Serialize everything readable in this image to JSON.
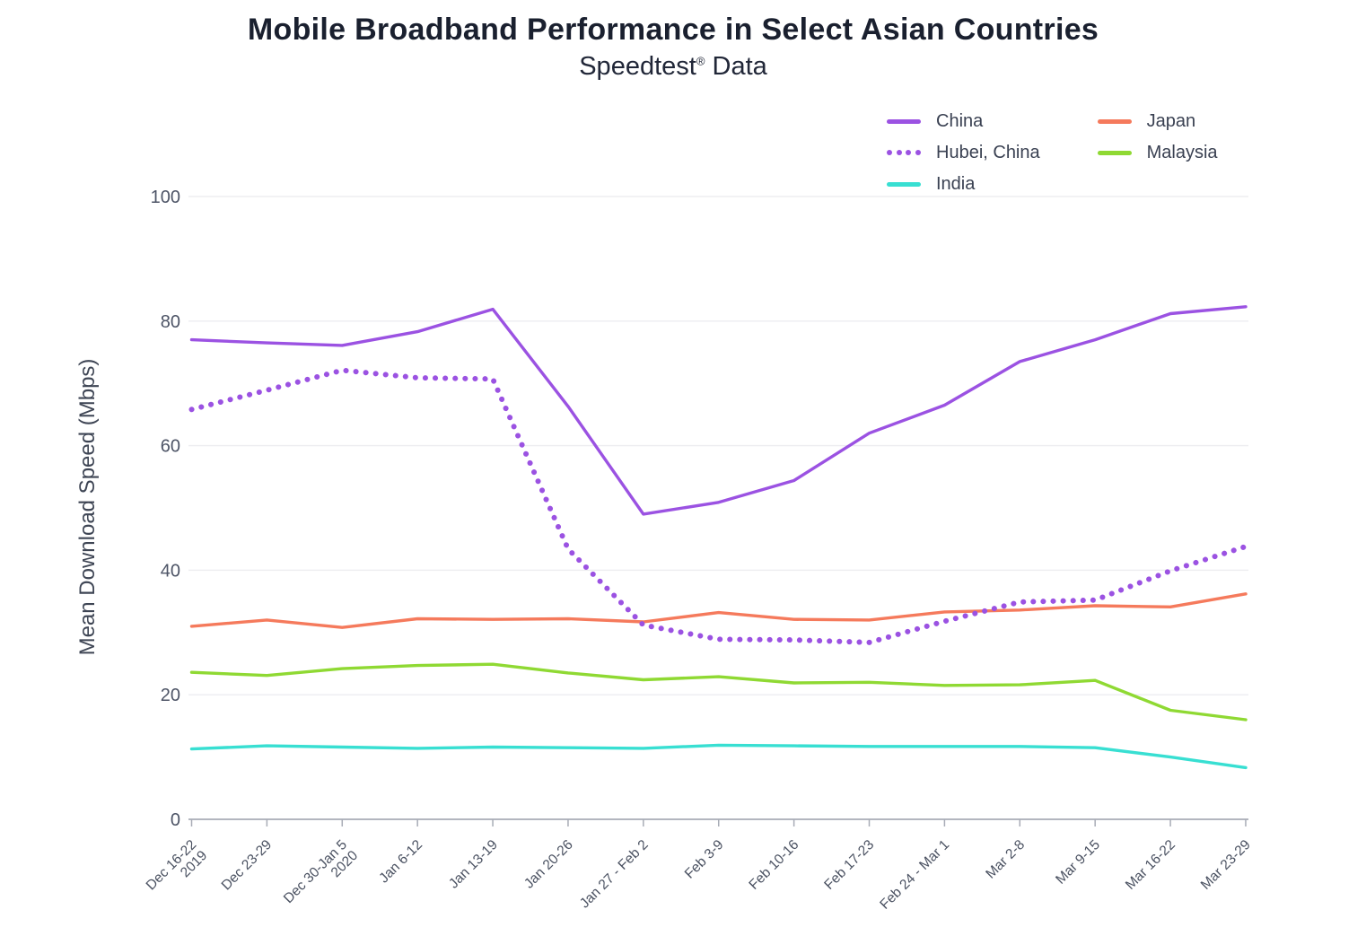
{
  "title": "Mobile Broadband Performance in Select Asian Countries",
  "subtitle_parts": {
    "brand": "Speedtest",
    "mark": "®",
    "rest": " Data"
  },
  "chart_data": {
    "type": "line",
    "title": "Mobile Broadband Performance in Select Asian Countries",
    "subtitle": "Speedtest® Data",
    "xlabel": "",
    "ylabel": "Mean Download Speed (Mbps)",
    "ylim": [
      0,
      100
    ],
    "yticks": [
      0,
      20,
      40,
      60,
      80,
      100
    ],
    "grid": true,
    "legend_position": "top-right",
    "categories": [
      [
        "Dec 16-22",
        "2019"
      ],
      "Dec 23-29",
      [
        "Dec 30-Jan 5",
        "2020"
      ],
      "Jan 6-12",
      "Jan 13-19",
      "Jan 20-26",
      "Jan 27 - Feb 2",
      "Feb 3-9",
      "Feb 10-16",
      "Feb 17-23",
      "Feb 24 - Mar 1",
      "Mar 2-8",
      "Mar 9-15",
      "Mar 16-22",
      "Mar 23-29"
    ],
    "series": [
      {
        "name": "China",
        "color": "#9b52e2",
        "style": "solid",
        "values": [
          77.0,
          76.5,
          76.1,
          78.3,
          81.9,
          66.3,
          49.0,
          50.9,
          54.4,
          62.0,
          66.5,
          73.5,
          77.0,
          81.2,
          82.3
        ]
      },
      {
        "name": "Hubei, China",
        "color": "#9b52e2",
        "style": "dotted",
        "values": [
          65.8,
          68.9,
          72.1,
          70.9,
          70.7,
          43.4,
          31.2,
          28.9,
          28.8,
          28.4,
          31.8,
          34.9,
          35.2,
          39.9,
          43.8
        ]
      },
      {
        "name": "India",
        "color": "#38dfd2",
        "style": "solid",
        "values": [
          11.3,
          11.8,
          11.6,
          11.4,
          11.6,
          11.5,
          11.4,
          11.9,
          11.8,
          11.7,
          11.7,
          11.7,
          11.5,
          10.0,
          8.3
        ]
      },
      {
        "name": "Japan",
        "color": "#f57a5c",
        "style": "solid",
        "values": [
          31.0,
          32.0,
          30.8,
          32.2,
          32.1,
          32.2,
          31.7,
          33.2,
          32.1,
          32.0,
          33.3,
          33.6,
          34.3,
          34.1,
          36.2
        ]
      },
      {
        "name": "Malaysia",
        "color": "#8fd933",
        "style": "solid",
        "values": [
          23.6,
          23.1,
          24.2,
          24.7,
          24.9,
          23.5,
          22.4,
          22.9,
          21.9,
          22.0,
          21.5,
          21.6,
          22.3,
          17.5,
          16.0
        ]
      }
    ]
  },
  "style_colors": {
    "title_text": "#1a202f",
    "axis_text": "#4d5466",
    "tick_label_text": "#4a5161",
    "legend_text": "#3a4152",
    "gridline": "#ededf0",
    "axis_line": "#a8acb6"
  }
}
